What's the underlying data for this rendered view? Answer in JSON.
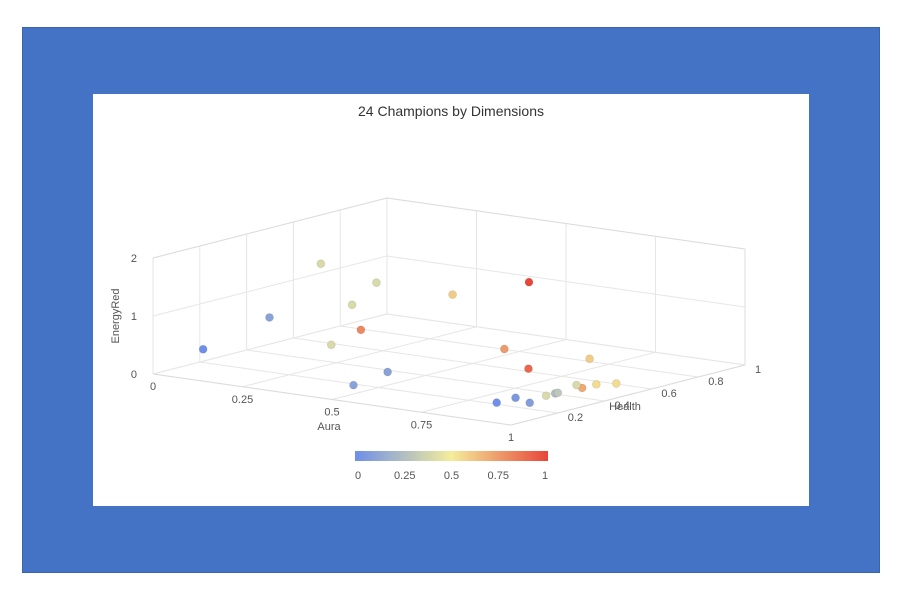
{
  "colors": {
    "background": "#4472c4",
    "card": "#ffffff"
  },
  "chart_data": {
    "type": "scatter",
    "title": "24 Champions by Dimensions",
    "xlabel": "Aura",
    "ylabel": "EnergyRed",
    "zlabel": "Health",
    "xlim": [
      0,
      1
    ],
    "ylim": [
      0,
      2
    ],
    "zlim": [
      0,
      1
    ],
    "x_ticks": [
      "0",
      "0.25",
      "0.5",
      "0.75",
      "1"
    ],
    "y_ticks": [
      "0",
      "1",
      "2"
    ],
    "z_ticks": [
      "0",
      "0.2",
      "0.4",
      "0.6",
      "0.8",
      "1"
    ],
    "colorbar": {
      "ticks": [
        "0",
        "0.25",
        "0.5",
        "0.75",
        "1"
      ],
      "min_color": "#6f8fe8",
      "mid_color": "#f3ed9a",
      "max_color": "#e8463a"
    },
    "points": [
      {
        "x": 0.14,
        "y": 0.55,
        "z": 0.0,
        "c": 0.0
      },
      {
        "x": 0.26,
        "y": 1.1,
        "z": 0.1,
        "c": 0.1
      },
      {
        "x": 0.24,
        "y": 1.75,
        "z": 0.35,
        "c": 0.4
      },
      {
        "x": 0.36,
        "y": 1.2,
        "z": 0.3,
        "c": 0.4
      },
      {
        "x": 0.4,
        "y": 0.7,
        "z": 0.15,
        "c": 0.4
      },
      {
        "x": 0.45,
        "y": 0.95,
        "z": 0.2,
        "c": 0.8
      },
      {
        "x": 0.51,
        "y": 1.3,
        "z": 0.5,
        "c": 0.6
      },
      {
        "x": 0.56,
        "y": 0.3,
        "z": 0.0,
        "c": 0.1
      },
      {
        "x": 0.59,
        "y": 0.45,
        "z": 0.1,
        "c": 0.1
      },
      {
        "x": 0.56,
        "y": 1.3,
        "z": 0.75,
        "c": 1.0
      },
      {
        "x": 0.72,
        "y": 0.65,
        "z": 0.4,
        "c": 0.75
      },
      {
        "x": 0.82,
        "y": 0.45,
        "z": 0.35,
        "c": 0.9
      },
      {
        "x": 0.86,
        "y": 0.45,
        "z": 0.55,
        "c": 0.6
      },
      {
        "x": 0.96,
        "y": 0.35,
        "z": 0.0,
        "c": 0.0
      },
      {
        "x": 0.98,
        "y": 0.4,
        "z": 0.05,
        "c": 0.05
      },
      {
        "x": 0.96,
        "y": 0.25,
        "z": 0.25,
        "c": 0.25
      },
      {
        "x": 0.97,
        "y": 0.25,
        "z": 0.35,
        "c": 0.7
      },
      {
        "x": 0.99,
        "y": 0.3,
        "z": 0.38,
        "c": 0.55
      },
      {
        "x": 1.0,
        "y": 0.25,
        "z": 0.45,
        "c": 0.55
      },
      {
        "x": 1.0,
        "y": 0.35,
        "z": 0.15,
        "c": 0.4
      },
      {
        "x": 1.0,
        "y": 0.35,
        "z": 0.2,
        "c": 0.3
      },
      {
        "x": 1.0,
        "y": 0.4,
        "z": 0.28,
        "c": 0.4
      },
      {
        "x": 1.0,
        "y": 0.3,
        "z": 0.08,
        "c": 0.08
      },
      {
        "x": 0.33,
        "y": 1.4,
        "z": 0.45,
        "c": 0.4
      }
    ]
  }
}
